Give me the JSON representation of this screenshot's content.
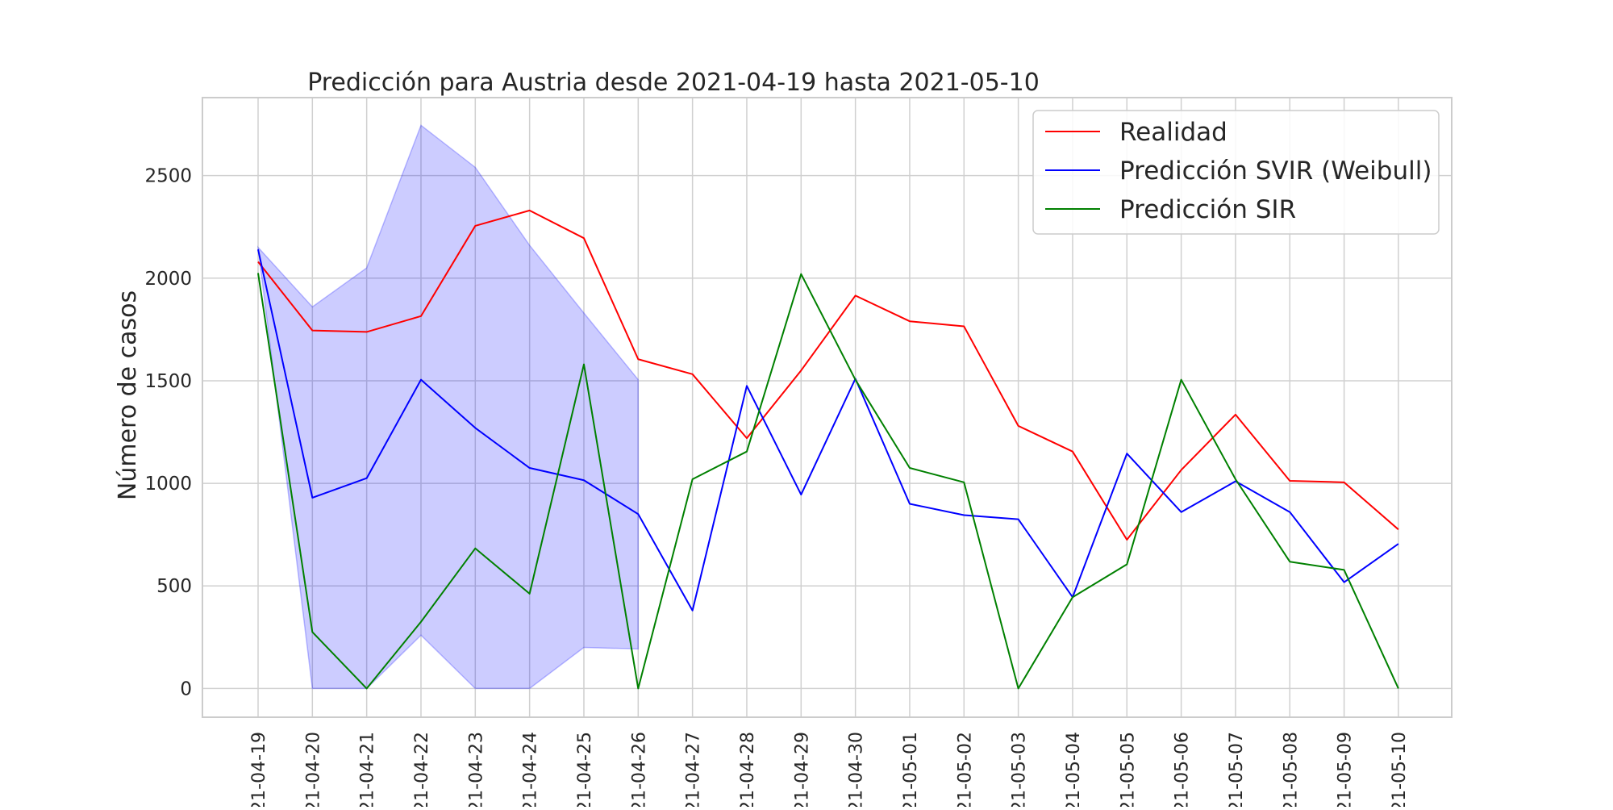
{
  "chart_data": {
    "type": "line",
    "title": "Predicción para Austria desde 2021-04-19 hasta 2021-05-10",
    "xlabel": "",
    "ylabel": "Número de casos",
    "x": [
      "21-04-19",
      "21-04-20",
      "21-04-21",
      "21-04-22",
      "21-04-23",
      "21-04-24",
      "21-04-25",
      "21-04-26",
      "21-04-27",
      "21-04-28",
      "21-04-29",
      "21-04-30",
      "21-05-01",
      "21-05-02",
      "21-05-03",
      "21-05-04",
      "21-05-05",
      "21-05-06",
      "21-05-07",
      "21-05-08",
      "21-05-09",
      "21-05-10"
    ],
    "yticks": [
      "0",
      "500",
      "1000",
      "1500",
      "2000",
      "2500"
    ],
    "ylim": [
      -140,
      2880
    ],
    "grid": true,
    "legend_position": "top-right",
    "series": [
      {
        "name": "Realidad",
        "color": "#ff0000",
        "values": [
          2080,
          1745,
          1738,
          1815,
          2255,
          2330,
          2195,
          1605,
          1532,
          1220,
          1550,
          1915,
          1790,
          1765,
          1280,
          1155,
          725,
          1065,
          1335,
          1012,
          1005,
          775
        ]
      },
      {
        "name": "Predicción SVIR (Weibull)",
        "color": "#0000ff",
        "values": [
          2140,
          930,
          1025,
          1505,
          1270,
          1075,
          1015,
          850,
          380,
          1475,
          945,
          1510,
          900,
          845,
          825,
          445,
          1145,
          860,
          1010,
          860,
          518,
          705
        ]
      },
      {
        "name": "Predicción SIR",
        "color": "#008000",
        "values": [
          2025,
          275,
          0,
          325,
          683,
          462,
          1580,
          0,
          1020,
          1155,
          2020,
          1505,
          1075,
          1005,
          0,
          445,
          605,
          1505,
          1020,
          618,
          578,
          0
        ]
      }
    ],
    "confidence_band": {
      "color": "#0000ff",
      "upper": [
        2150,
        1860,
        2050,
        2745,
        2540,
        2160,
        1830,
        1505
      ],
      "lower": [
        2150,
        0,
        0,
        260,
        0,
        0,
        200,
        193
      ]
    }
  }
}
